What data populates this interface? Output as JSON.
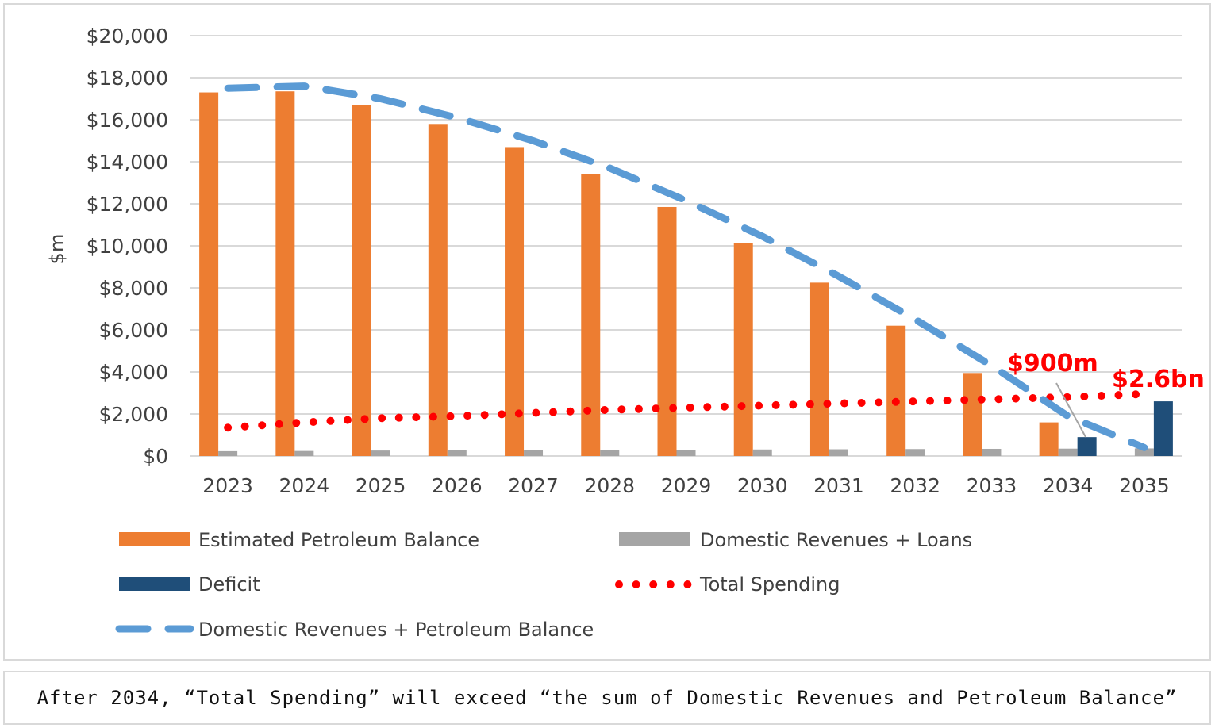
{
  "chart_data": {
    "type": "bar",
    "ylabel": "$m",
    "ylim": [
      0,
      20000
    ],
    "y_ticks": [
      "$0",
      "$2,000",
      "$4,000",
      "$6,000",
      "$8,000",
      "$10,000",
      "$12,000",
      "$14,000",
      "$16,000",
      "$18,000",
      "$20,000"
    ],
    "categories": [
      "2023",
      "2024",
      "2025",
      "2026",
      "2027",
      "2028",
      "2029",
      "2030",
      "2031",
      "2032",
      "2033",
      "2034",
      "2035"
    ],
    "grid": true,
    "legend_position": "bottom",
    "series": [
      {
        "name": "Estimated Petroleum Balance",
        "kind": "bar",
        "color": "#ed7d31",
        "values": [
          17300,
          17350,
          16700,
          15800,
          14700,
          13400,
          11850,
          10150,
          8250,
          6200,
          3950,
          1600,
          0
        ]
      },
      {
        "name": "Domestic Revenues + Loans",
        "kind": "bar",
        "color": "#a5a5a5",
        "values": [
          230,
          240,
          260,
          270,
          280,
          290,
          300,
          310,
          320,
          330,
          340,
          350,
          360
        ]
      },
      {
        "name": "Deficit",
        "kind": "bar",
        "color": "#1f4e79",
        "values": [
          0,
          0,
          0,
          0,
          0,
          0,
          0,
          0,
          0,
          0,
          0,
          900,
          2600
        ]
      },
      {
        "name": "Total Spending",
        "kind": "line",
        "style": "dotted",
        "color": "#ff0000",
        "values": [
          1350,
          1600,
          1800,
          1900,
          2050,
          2200,
          2300,
          2400,
          2500,
          2600,
          2700,
          2800,
          2950
        ]
      },
      {
        "name": "Domestic Revenues + Petroleum Balance",
        "kind": "line",
        "style": "dashed",
        "color": "#5b9bd5",
        "values": [
          17500,
          17600,
          17000,
          16100,
          15000,
          13700,
          12150,
          10450,
          8550,
          6500,
          4300,
          1900,
          400
        ]
      }
    ],
    "annotations": [
      "$900m",
      "$2.6bn"
    ]
  },
  "caption": "After 2034, “Total Spending” will exceed “the sum of Domestic Revenues and Petroleum Balance”"
}
